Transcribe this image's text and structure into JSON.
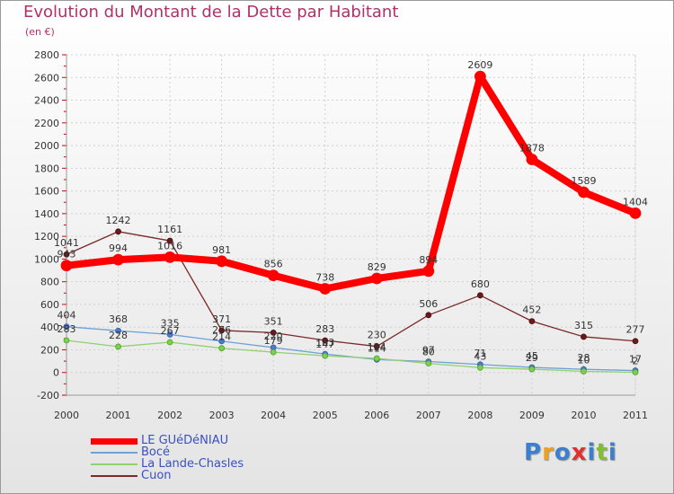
{
  "chart_data": {
    "type": "line",
    "title": "Evolution du Montant de la Dette par Habitant",
    "subtitle": "(en €)",
    "x": [
      "2000",
      "2001",
      "2002",
      "2003",
      "2004",
      "2005",
      "2006",
      "2007",
      "2008",
      "2009",
      "2010",
      "2011"
    ],
    "ylim": [
      -200,
      2800
    ],
    "yticks": [
      "-200",
      "0",
      "200",
      "400",
      "600",
      "800",
      "1000",
      "1200",
      "1400",
      "1600",
      "1800",
      "2000",
      "2200",
      "2400",
      "2600",
      "2800"
    ],
    "grid": true,
    "legend_position": "bottom-left",
    "series": [
      {
        "name": "Cuon",
        "color": "#7a2a2a",
        "values": [
          1041,
          1242,
          1161,
          371,
          351,
          283,
          230,
          506,
          680,
          452,
          315,
          277
        ],
        "labels": [
          "1041",
          "1242",
          "1161",
          "371",
          "351",
          "283",
          "230",
          "506",
          "680",
          "452",
          "315",
          "277"
        ]
      },
      {
        "name": "Bocé",
        "color": "#6fa0d8",
        "values": [
          404,
          368,
          335,
          276,
          220,
          163,
          114,
          97,
          71,
          45,
          28,
          17
        ],
        "labels": [
          "404",
          "368",
          "335",
          "276",
          "220",
          "163",
          "114",
          "97",
          "71",
          "45",
          "28",
          "17"
        ]
      },
      {
        "name": "La Lande-Chasles",
        "color": "#90d070",
        "values": [
          283,
          228,
          267,
          214,
          179,
          147,
          124,
          80,
          43,
          29,
          10,
          2
        ],
        "labels": [
          "283",
          "228",
          "267",
          "214",
          "179",
          "147",
          "124",
          "80",
          "43",
          "29",
          "10",
          "2"
        ]
      },
      {
        "name": "LE GUéDéNIAU",
        "color": "#ff0000",
        "values": [
          943,
          994,
          1016,
          981,
          856,
          738,
          829,
          894,
          2609,
          1878,
          1589,
          1404
        ],
        "labels": [
          "943",
          "994",
          "1016",
          "981",
          "856",
          "738",
          "829",
          "894",
          "2609",
          "1878",
          "1589",
          "1404"
        ]
      }
    ]
  },
  "legend": [
    {
      "name": "LE GUéDéNIAU",
      "color": "#ff0000"
    },
    {
      "name": "Bocé",
      "color": "#6fa0d8"
    },
    {
      "name": "La Lande-Chasles",
      "color": "#90d070"
    },
    {
      "name": "Cuon",
      "color": "#7a2a2a"
    }
  ],
  "logo": {
    "letters": [
      "P",
      "r",
      "o",
      "x",
      "i",
      "t",
      "i"
    ],
    "colors": [
      "#3a7fd0",
      "#f0a020",
      "#3a7fd0",
      "#e03030",
      "#3a7fd0",
      "#80c030",
      "#3a7fd0"
    ]
  }
}
